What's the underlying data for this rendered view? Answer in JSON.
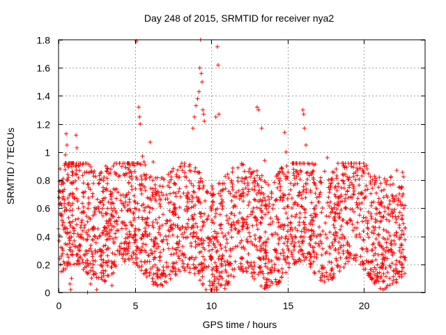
{
  "chart_data": {
    "type": "scatter",
    "title": "Day 248 of 2015, SRMTID for receiver nya2",
    "xlabel": "GPS time / hours",
    "ylabel": "SRMTID / TECUs",
    "xlim": [
      0,
      24
    ],
    "ylim": [
      0,
      1.8
    ],
    "xticks": [
      0,
      5,
      10,
      15,
      20
    ],
    "xtick_labels": [
      "0",
      "5",
      "10",
      "15",
      "20"
    ],
    "yticks": [
      0,
      0.2,
      0.4,
      0.6,
      0.8,
      1.0,
      1.2,
      1.4,
      1.6,
      1.8
    ],
    "ytick_labels": [
      "0",
      "0.2",
      "0.4",
      "0.6",
      "0.8",
      "1",
      "1.2",
      "1.4",
      "1.6",
      "1.8"
    ],
    "grid": true,
    "marker": "+",
    "color": "#ff0000",
    "x_data_range_hours": [
      0,
      22.7
    ],
    "typical_value_range": [
      0.1,
      0.9
    ],
    "series": [
      {
        "name": "SRMTID",
        "points": [
          [
            0.05,
            0.72
          ],
          [
            0.1,
            0.88
          ],
          [
            0.15,
            0.55
          ],
          [
            0.2,
            0.62
          ],
          [
            0.25,
            0.48
          ],
          [
            0.3,
            0.81
          ],
          [
            0.35,
            0.45
          ],
          [
            0.4,
            0.66
          ],
          [
            0.45,
            0.98
          ],
          [
            0.5,
            1.13
          ],
          [
            0.55,
            1.05
          ],
          [
            0.6,
            0.91
          ],
          [
            0.65,
            0.25
          ],
          [
            0.7,
            0.35
          ],
          [
            0.75,
            0.06
          ],
          [
            0.8,
            0.02
          ],
          [
            0.85,
            0.1
          ],
          [
            0.9,
            0.55
          ],
          [
            0.95,
            0.7
          ],
          [
            1.0,
            0.42
          ],
          [
            1.1,
            0.9
          ],
          [
            1.15,
            1.12
          ],
          [
            1.2,
            1.03
          ],
          [
            1.3,
            0.6
          ],
          [
            1.4,
            0.3
          ],
          [
            1.5,
            0.5
          ],
          [
            1.9,
            0.0
          ],
          [
            2.0,
            0.3
          ],
          [
            2.1,
            0.06
          ],
          [
            2.2,
            0.45
          ],
          [
            2.5,
            0.02
          ],
          [
            3.1,
            0.9
          ],
          [
            3.2,
            0.88
          ],
          [
            3.4,
            0.7
          ],
          [
            3.5,
            0.05
          ],
          [
            5.1,
            1.79
          ],
          [
            5.25,
            1.32
          ],
          [
            5.3,
            1.25
          ],
          [
            5.35,
            1.2
          ],
          [
            5.5,
            0.97
          ],
          [
            5.6,
            0.93
          ],
          [
            6.0,
            1.07
          ],
          [
            6.2,
            0.93
          ],
          [
            8.8,
            1.17
          ],
          [
            8.9,
            1.25
          ],
          [
            9.0,
            1.33
          ],
          [
            9.1,
            1.38
          ],
          [
            9.2,
            1.43
          ],
          [
            9.25,
            1.6
          ],
          [
            9.3,
            1.8
          ],
          [
            9.35,
            1.56
          ],
          [
            9.4,
            1.5
          ],
          [
            9.45,
            1.3
          ],
          [
            9.5,
            1.27
          ],
          [
            9.55,
            1.22
          ],
          [
            10.3,
            1.25
          ],
          [
            10.4,
            1.75
          ],
          [
            10.45,
            1.62
          ],
          [
            10.5,
            1.27
          ],
          [
            13.0,
            1.32
          ],
          [
            13.1,
            1.3
          ],
          [
            13.3,
            1.17
          ],
          [
            13.5,
            0.94
          ],
          [
            14.8,
            1.14
          ],
          [
            14.9,
            1.0
          ],
          [
            16.0,
            1.3
          ],
          [
            16.05,
            1.27
          ],
          [
            16.1,
            1.17
          ],
          [
            16.2,
            1.05
          ],
          [
            17.6,
            0.96
          ],
          [
            17.8,
            0.75
          ],
          [
            20.0,
            0.85
          ],
          [
            20.2,
            0.88
          ],
          [
            21.0,
            0.82
          ],
          [
            22.5,
            0.55
          ],
          [
            22.6,
            0.6
          ],
          [
            22.7,
            0.25
          ]
        ]
      }
    ]
  }
}
